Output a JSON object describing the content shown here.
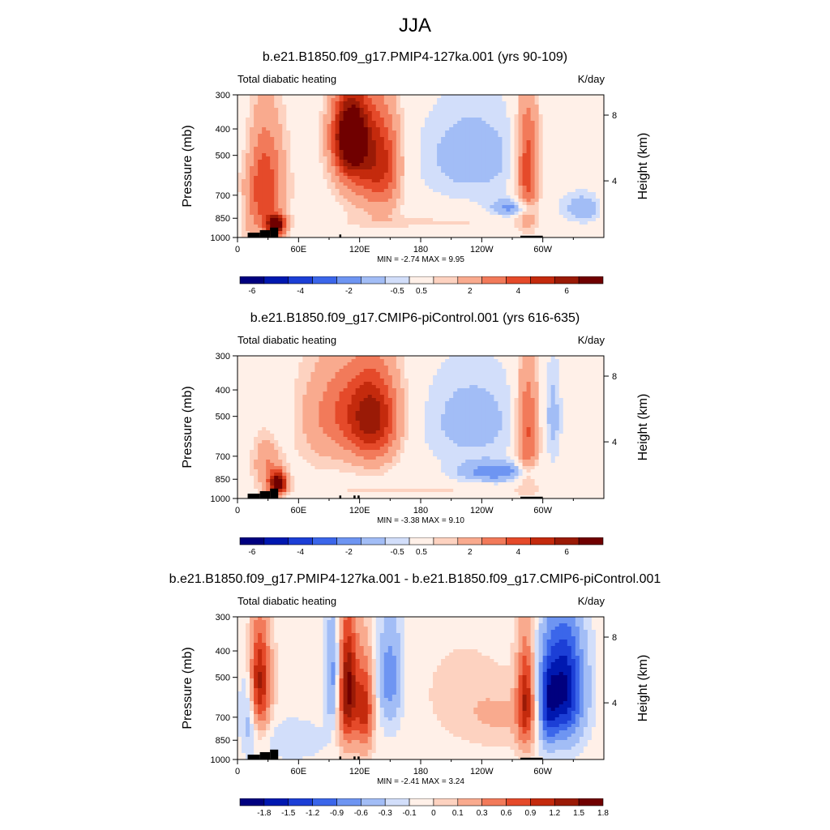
{
  "title": "JJA",
  "colors": {
    "mean_scale": [
      "#00007f",
      "#0018b0",
      "#1c3fd6",
      "#3b66ea",
      "#6e95f2",
      "#a2bdf6",
      "#d2defa",
      "#fff0e8",
      "#fdd2c0",
      "#f9aa8e",
      "#f27a5a",
      "#e54a2a",
      "#c42a0d",
      "#9a1a06",
      "#700000"
    ],
    "diff_scale": [
      "#00007f",
      "#0018b0",
      "#1c3fd6",
      "#3b66ea",
      "#6e95f2",
      "#a2bdf6",
      "#d2defa",
      "#fff0e8",
      "#fdd2c0",
      "#f9aa8e",
      "#f27a5a",
      "#e54a2a",
      "#c42a0d",
      "#9a1a06",
      "#700000"
    ]
  },
  "chart_data": [
    {
      "type": "heatmap",
      "title": "b.e21.B1850.f09_g17.PMIP4-127ka.001 (yrs 90-109)",
      "left_string": "Total diabatic heating",
      "right_string": "K/day",
      "ylabel": "Pressure (mb)",
      "y2label": "Height (km)",
      "yticks": [
        "300",
        "400",
        "500",
        "700",
        "850",
        "1000"
      ],
      "y2ticks": [
        "8",
        "4"
      ],
      "xticks": [
        "0",
        "60E",
        "120E",
        "180",
        "120W",
        "60W"
      ],
      "min_label": "MIN =",
      "min_value": "-2.74",
      "max_label": "MAX =",
      "max_value": "9.95",
      "colorbar_labels": [
        "-6",
        "-4",
        "-2",
        "-0.5",
        "0.5",
        "2",
        "4",
        "6"
      ],
      "features": [
        {
          "lon": 25,
          "p": 650,
          "w": 14,
          "h": 350,
          "v": 4
        },
        {
          "lon": 38,
          "p": 900,
          "w": 6,
          "h": 80,
          "v": 7
        },
        {
          "lon": 110,
          "p": 420,
          "w": 12,
          "h": 160,
          "v": 6.5
        },
        {
          "lon": 125,
          "p": 500,
          "w": 18,
          "h": 260,
          "v": 3.5
        },
        {
          "lon": 145,
          "p": 550,
          "w": 12,
          "h": 260,
          "v": 2.5
        },
        {
          "lon": 230,
          "p": 500,
          "w": 40,
          "h": 250,
          "v": -1.5
        },
        {
          "lon": 270,
          "p": 780,
          "w": 14,
          "h": 60,
          "v": -2.3
        },
        {
          "lon": 285,
          "p": 550,
          "w": 8,
          "h": 320,
          "v": 4
        },
        {
          "lon": 10,
          "p": 500,
          "w": 10,
          "h": 250,
          "v": -0.8
        },
        {
          "lon": 340,
          "p": 780,
          "w": 16,
          "h": 120,
          "v": -1.6
        },
        {
          "lon": 195,
          "p": 880,
          "w": 70,
          "h": 60,
          "v": 0.6
        }
      ],
      "topography": [
        [
          10,
          22,
          960
        ],
        [
          22,
          32,
          940
        ],
        [
          32,
          40,
          920
        ],
        [
          100,
          102,
          975
        ],
        [
          278,
          300,
          985
        ]
      ]
    },
    {
      "type": "heatmap",
      "title": "b.e21.B1850.f09_g17.CMIP6-piControl.001 (yrs 616-635)",
      "left_string": "Total diabatic heating",
      "right_string": "K/day",
      "ylabel": "Pressure (mb)",
      "y2label": "Height (km)",
      "yticks": [
        "300",
        "400",
        "500",
        "700",
        "850",
        "1000"
      ],
      "y2ticks": [
        "8",
        "4"
      ],
      "xticks": [
        "0",
        "60E",
        "120E",
        "180",
        "120W",
        "60W"
      ],
      "min_label": "MIN =",
      "min_value": "-3.38",
      "max_label": "MAX =",
      "max_value": "9.10",
      "colorbar_labels": [
        "-6",
        "-4",
        "-2",
        "-0.5",
        "0.5",
        "2",
        "4",
        "6"
      ],
      "features": [
        {
          "lon": 40,
          "p": 880,
          "w": 6,
          "h": 90,
          "v": 7
        },
        {
          "lon": 30,
          "p": 750,
          "w": 10,
          "h": 200,
          "v": 2
        },
        {
          "lon": 115,
          "p": 480,
          "w": 28,
          "h": 220,
          "v": 3
        },
        {
          "lon": 135,
          "p": 520,
          "w": 16,
          "h": 220,
          "v": 3.5
        },
        {
          "lon": 80,
          "p": 550,
          "w": 20,
          "h": 300,
          "v": 0.6
        },
        {
          "lon": 230,
          "p": 520,
          "w": 40,
          "h": 270,
          "v": -1.4
        },
        {
          "lon": 255,
          "p": 800,
          "w": 25,
          "h": 70,
          "v": -2.6
        },
        {
          "lon": 285,
          "p": 560,
          "w": 8,
          "h": 320,
          "v": 3.5
        },
        {
          "lon": 310,
          "p": 500,
          "w": 6,
          "h": 250,
          "v": -1.2
        },
        {
          "lon": 40,
          "p": 500,
          "w": 8,
          "h": 250,
          "v": -0.6
        },
        {
          "lon": 180,
          "p": 940,
          "w": 80,
          "h": 40,
          "v": 0.6
        }
      ],
      "topography": [
        [
          10,
          22,
          960
        ],
        [
          22,
          32,
          940
        ],
        [
          32,
          40,
          920
        ],
        [
          100,
          102,
          975
        ],
        [
          114,
          116,
          975
        ],
        [
          118,
          120,
          975
        ],
        [
          278,
          300,
          985
        ]
      ]
    },
    {
      "type": "heatmap",
      "title": "b.e21.B1850.f09_g17.PMIP4-127ka.001 - b.e21.B1850.f09_g17.CMIP6-piControl.001",
      "left_string": "Total diabatic heating",
      "right_string": "K/day",
      "ylabel": "Pressure (mb)",
      "y2label": "Height (km)",
      "yticks": [
        "300",
        "400",
        "500",
        "700",
        "850",
        "1000"
      ],
      "y2ticks": [
        "8",
        "4"
      ],
      "xticks": [
        "0",
        "60E",
        "120E",
        "180",
        "120W",
        "60W"
      ],
      "min_label": "MIN =",
      "min_value": "-2.41",
      "max_label": "MAX =",
      "max_value": "3.24",
      "colorbar_labels": [
        "-1.8",
        "-1.5",
        "-1.2",
        "-0.9",
        "-0.6",
        "-0.3",
        "-0.1",
        "0",
        "0.1",
        "0.3",
        "0.6",
        "0.9",
        "1.2",
        "1.5",
        "1.8"
      ],
      "features": [
        {
          "lon": 20,
          "p": 520,
          "w": 8,
          "h": 260,
          "v": 1.8
        },
        {
          "lon": 12,
          "p": 600,
          "w": 6,
          "h": 300,
          "v": -0.9
        },
        {
          "lon": 108,
          "p": 550,
          "w": 7,
          "h": 320,
          "v": 2.0
        },
        {
          "lon": 125,
          "p": 650,
          "w": 6,
          "h": 280,
          "v": 1.3
        },
        {
          "lon": 95,
          "p": 500,
          "w": 6,
          "h": 260,
          "v": -0.9
        },
        {
          "lon": 150,
          "p": 500,
          "w": 8,
          "h": 250,
          "v": -0.8
        },
        {
          "lon": 283,
          "p": 600,
          "w": 6,
          "h": 300,
          "v": 1.4
        },
        {
          "lon": 320,
          "p": 550,
          "w": 14,
          "h": 300,
          "v": -1.9
        },
        {
          "lon": 305,
          "p": 650,
          "w": 6,
          "h": 250,
          "v": -0.9
        },
        {
          "lon": 260,
          "p": 700,
          "w": 30,
          "h": 200,
          "v": 0.3
        },
        {
          "lon": 220,
          "p": 550,
          "w": 30,
          "h": 250,
          "v": 0.15
        },
        {
          "lon": 55,
          "p": 850,
          "w": 20,
          "h": 150,
          "v": -0.3
        }
      ],
      "topography": [
        [
          10,
          22,
          960
        ],
        [
          22,
          32,
          940
        ],
        [
          32,
          40,
          920
        ],
        [
          100,
          102,
          975
        ],
        [
          114,
          116,
          975
        ],
        [
          118,
          120,
          975
        ],
        [
          278,
          300,
          985
        ]
      ]
    }
  ]
}
